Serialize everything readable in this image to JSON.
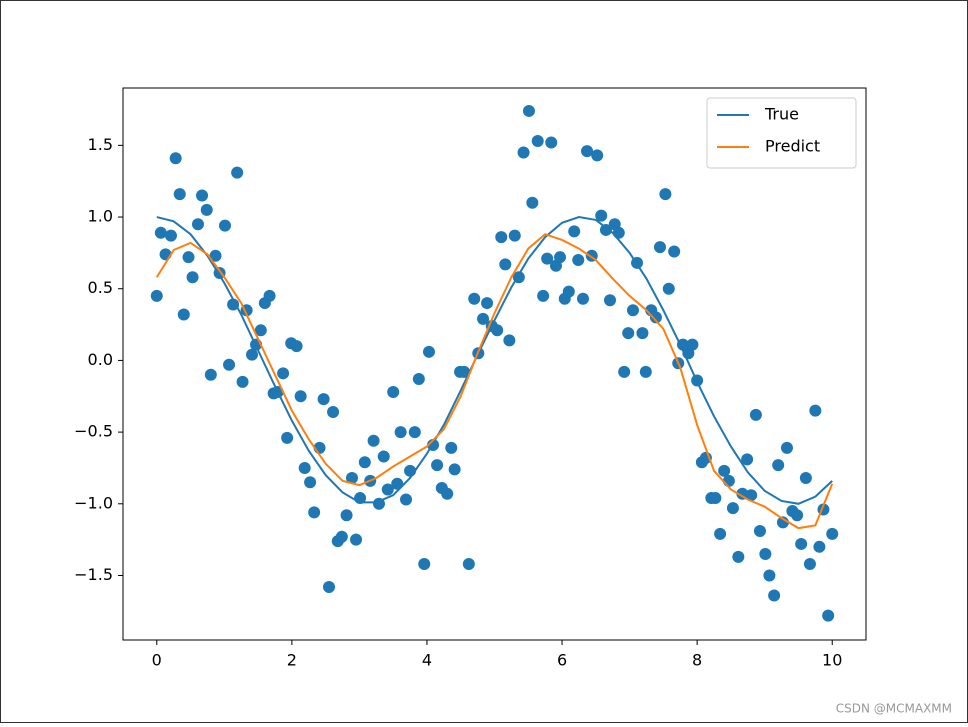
{
  "chart_data": {
    "type": "scatter",
    "xlim": [
      -0.5,
      10.5
    ],
    "ylim": [
      -1.95,
      1.9
    ],
    "xticks": [
      0,
      2,
      4,
      6,
      8,
      10
    ],
    "yticks": [
      {
        "value": -1.5,
        "label": "−1.5"
      },
      {
        "value": -1.0,
        "label": "−1.0"
      },
      {
        "value": -0.5,
        "label": "−0.5"
      },
      {
        "value": 0,
        "label": "0.0"
      },
      0.5,
      {
        "value": 1.0,
        "label": "1.0"
      },
      1.5
    ],
    "legend": "upper right",
    "points": {
      "color": "#1f77b4",
      "x": [
        0,
        0.06,
        0.13,
        0.21,
        0.28,
        0.34,
        0.4,
        0.47,
        0.53,
        0.61,
        0.67,
        0.74,
        0.8,
        0.87,
        0.93,
        1.01,
        1.07,
        1.13,
        1.19,
        1.27,
        1.33,
        1.41,
        1.47,
        1.54,
        1.6,
        1.67,
        1.73,
        1.79,
        1.87,
        1.93,
        1.99,
        2.07,
        2.13,
        2.19,
        2.27,
        2.33,
        2.41,
        2.47,
        2.55,
        2.61,
        2.68,
        2.74,
        2.81,
        2.89,
        2.95,
        3.01,
        3.08,
        3.16,
        3.21,
        3.29,
        3.36,
        3.42,
        3.5,
        3.56,
        3.61,
        3.69,
        3.75,
        3.82,
        3.88,
        3.96,
        4.03,
        4.09,
        4.15,
        4.22,
        4.3,
        4.36,
        4.41,
        4.49,
        4.55,
        4.62,
        4.7,
        4.76,
        4.83,
        4.89,
        4.96,
        5.04,
        5.1,
        5.16,
        5.22,
        5.3,
        5.36,
        5.43,
        5.51,
        5.56,
        5.64,
        5.72,
        5.78,
        5.84,
        5.91,
        5.97,
        6.04,
        6.1,
        6.18,
        6.24,
        6.31,
        6.37,
        6.44,
        6.52,
        6.58,
        6.65,
        6.71,
        6.78,
        6.84,
        6.92,
        6.98,
        7.05,
        7.11,
        7.19,
        7.24,
        7.32,
        7.39,
        7.45,
        7.53,
        7.58,
        7.66,
        7.72,
        7.79,
        7.87,
        7.93,
        8.0,
        8.07,
        8.13,
        8.21,
        8.27,
        8.34,
        8.4,
        8.47,
        8.53,
        8.61,
        8.67,
        8.74,
        8.8,
        8.87,
        8.93,
        9.01,
        9.07,
        9.14,
        9.2,
        9.27,
        9.33,
        9.41,
        9.48,
        9.54,
        9.61,
        9.67,
        9.75,
        9.81,
        9.87,
        9.94,
        10
      ],
      "values": [
        0.45,
        0.89,
        0.74,
        0.87,
        1.41,
        1.16,
        0.32,
        0.72,
        0.58,
        0.95,
        1.15,
        1.05,
        -0.1,
        0.73,
        0.61,
        0.94,
        -0.03,
        0.39,
        1.31,
        -0.15,
        0.35,
        0.04,
        0.11,
        0.21,
        0.4,
        0.45,
        -0.23,
        -0.22,
        -0.09,
        -0.54,
        0.12,
        0.1,
        -0.25,
        -0.75,
        -0.85,
        -1.06,
        -0.61,
        -0.27,
        -1.58,
        -0.36,
        -1.26,
        -1.23,
        -1.08,
        -0.82,
        -1.25,
        -0.96,
        -0.71,
        -0.84,
        -0.56,
        -1.0,
        -0.67,
        -0.9,
        -0.22,
        -0.86,
        -0.5,
        -0.97,
        -0.77,
        -0.5,
        -0.13,
        -1.42,
        0.06,
        -0.59,
        -0.73,
        -0.89,
        -0.93,
        -0.61,
        -0.76,
        -0.08,
        -0.08,
        -1.42,
        0.43,
        0.05,
        0.29,
        0.4,
        0.24,
        0.21,
        0.86,
        0.67,
        0.14,
        0.87,
        0.58,
        1.45,
        1.74,
        1.1,
        1.53,
        0.45,
        0.71,
        1.52,
        0.66,
        0.72,
        0.43,
        0.48,
        0.9,
        0.7,
        0.43,
        1.46,
        0.73,
        1.43,
        1.01,
        0.91,
        0.42,
        0.95,
        0.89,
        -0.08,
        0.19,
        0.35,
        0.68,
        0.19,
        -0.08,
        0.35,
        0.3,
        0.79,
        1.16,
        0.5,
        0.76,
        -0.02,
        0.11,
        0.05,
        0.11,
        -0.14,
        -0.71,
        -0.68,
        -0.96,
        -0.96,
        -1.21,
        -0.77,
        -0.84,
        -1.03,
        -1.37,
        -0.93,
        -0.69,
        -0.94,
        -0.38,
        -1.19,
        -1.35,
        -1.5,
        -1.64,
        -0.73,
        -1.13,
        -0.61,
        -1.05,
        -1.08,
        -1.28,
        -0.82,
        -1.42,
        -0.35,
        -1.3,
        -1.04,
        -1.78,
        -1.21
      ]
    },
    "series": [
      {
        "name": "True",
        "color": "#1f77b4",
        "x": [
          0,
          0.25,
          0.5,
          0.75,
          1,
          1.25,
          1.5,
          1.75,
          2,
          2.25,
          2.5,
          2.75,
          3,
          3.25,
          3.5,
          3.75,
          4,
          4.25,
          4.5,
          4.75,
          5,
          5.25,
          5.5,
          5.75,
          6,
          6.25,
          6.5,
          6.75,
          7,
          7.25,
          7.5,
          7.75,
          8,
          8.25,
          8.5,
          8.75,
          9,
          9.25,
          9.5,
          9.75,
          10
        ],
        "values": [
          1,
          0.97,
          0.88,
          0.73,
          0.54,
          0.32,
          0.07,
          -0.18,
          -0.42,
          -0.63,
          -0.8,
          -0.92,
          -0.99,
          -0.99,
          -0.94,
          -0.82,
          -0.65,
          -0.45,
          -0.21,
          0.04,
          0.28,
          0.51,
          0.71,
          0.86,
          0.96,
          1.0,
          0.98,
          0.89,
          0.75,
          0.57,
          0.35,
          0.11,
          -0.15,
          -0.39,
          -0.6,
          -0.78,
          -0.91,
          -0.98,
          -1.0,
          -0.95,
          -0.84
        ]
      },
      {
        "name": "Predict",
        "color": "#ff7f0e",
        "x": [
          0,
          0.25,
          0.5,
          0.75,
          1,
          1.25,
          1.5,
          1.75,
          2,
          2.25,
          2.5,
          2.75,
          3,
          3.25,
          3.5,
          3.75,
          4,
          4.25,
          4.5,
          4.75,
          5,
          5.25,
          5.5,
          5.75,
          6,
          6.25,
          6.5,
          6.75,
          7,
          7.25,
          7.5,
          7.75,
          8,
          8.25,
          8.5,
          8.75,
          9,
          9.25,
          9.5,
          9.75,
          10
        ],
        "values": [
          0.58,
          0.77,
          0.82,
          0.74,
          0.58,
          0.4,
          0.15,
          -0.1,
          -0.35,
          -0.55,
          -0.72,
          -0.84,
          -0.87,
          -0.82,
          -0.74,
          -0.67,
          -0.6,
          -0.48,
          -0.25,
          0.05,
          0.33,
          0.58,
          0.78,
          0.88,
          0.84,
          0.78,
          0.7,
          0.57,
          0.45,
          0.35,
          0.22,
          -0.05,
          -0.45,
          -0.77,
          -0.9,
          -0.97,
          -1.02,
          -1.1,
          -1.17,
          -1.15,
          -0.86
        ]
      }
    ],
    "watermark": "CSDN @MCMAXMM"
  }
}
